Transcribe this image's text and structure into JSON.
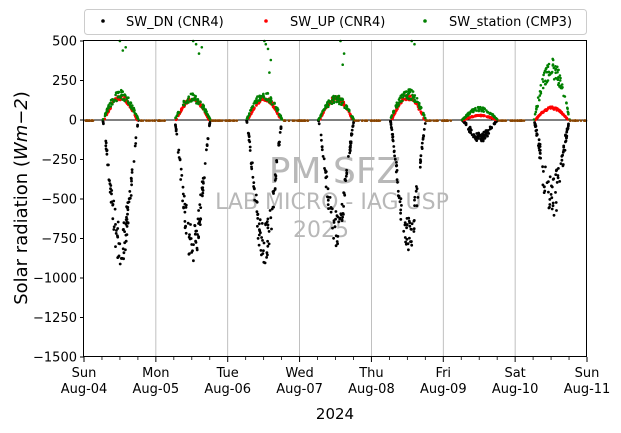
{
  "chart_data": {
    "type": "scatter",
    "title": "",
    "xlabel": "2024",
    "ylabel": "Solar radiation (Wm−2)",
    "ylabel_prefix": "Solar radiation (",
    "ylabel_unit": "Wm−2",
    "ylabel_suffix": ")",
    "xlim": [
      0,
      7
    ],
    "ylim": [
      -1500,
      500
    ],
    "yticks": [
      500,
      250,
      0,
      -250,
      -500,
      -750,
      -1000,
      -1250,
      -1500
    ],
    "ytick_labels": [
      "500",
      "250",
      "0",
      "−250",
      "−500",
      "−750",
      "−1000",
      "−1250",
      "−1500"
    ],
    "xticks": [
      0,
      1,
      2,
      3,
      4,
      5,
      6,
      7
    ],
    "xtick_labels": [
      [
        "Sun",
        "Aug-04"
      ],
      [
        "Mon",
        "Aug-05"
      ],
      [
        "Tue",
        "Aug-06"
      ],
      [
        "Wed",
        "Aug-07"
      ],
      [
        "Thu",
        "Aug-08"
      ],
      [
        "Fri",
        "Aug-09"
      ],
      [
        "Sat",
        "Aug-10"
      ],
      [
        "Sun",
        "Aug-11"
      ]
    ],
    "grid": "vertical",
    "legend_position": "top",
    "watermark": [
      "PM SFZ",
      "LAB MICRO - IAG USP",
      "2025"
    ],
    "series": [
      {
        "name": "SW_DN (CNR4)",
        "color": "#000000",
        "daily_peak": [
          -880,
          -880,
          -880,
          -760,
          -820,
          -130,
          -590
        ]
      },
      {
        "name": "SW_UP (CNR4)",
        "color": "#ff0000",
        "daily_peak": [
          150,
          140,
          145,
          145,
          150,
          30,
          80
        ]
      },
      {
        "name": "SW_station (CMP3)",
        "color": "#008000",
        "daily_peak": [
          180,
          160,
          175,
          150,
          190,
          80,
          370
        ],
        "outliers": [
          [
            0.54,
            440
          ],
          [
            0.58,
            460
          ],
          [
            0.5,
            500
          ],
          [
            1.56,
            480
          ],
          [
            1.6,
            420
          ],
          [
            1.64,
            460
          ],
          [
            1.52,
            500
          ],
          [
            2.53,
            480
          ],
          [
            2.56,
            450
          ],
          [
            2.6,
            380
          ],
          [
            2.58,
            300
          ],
          [
            2.51,
            500
          ],
          [
            3.62,
            420
          ],
          [
            3.6,
            350
          ],
          [
            3.57,
            500
          ],
          [
            4.6,
            480
          ],
          [
            4.56,
            500
          ],
          [
            6.53,
            380
          ],
          [
            6.56,
            340
          ]
        ]
      }
    ]
  }
}
